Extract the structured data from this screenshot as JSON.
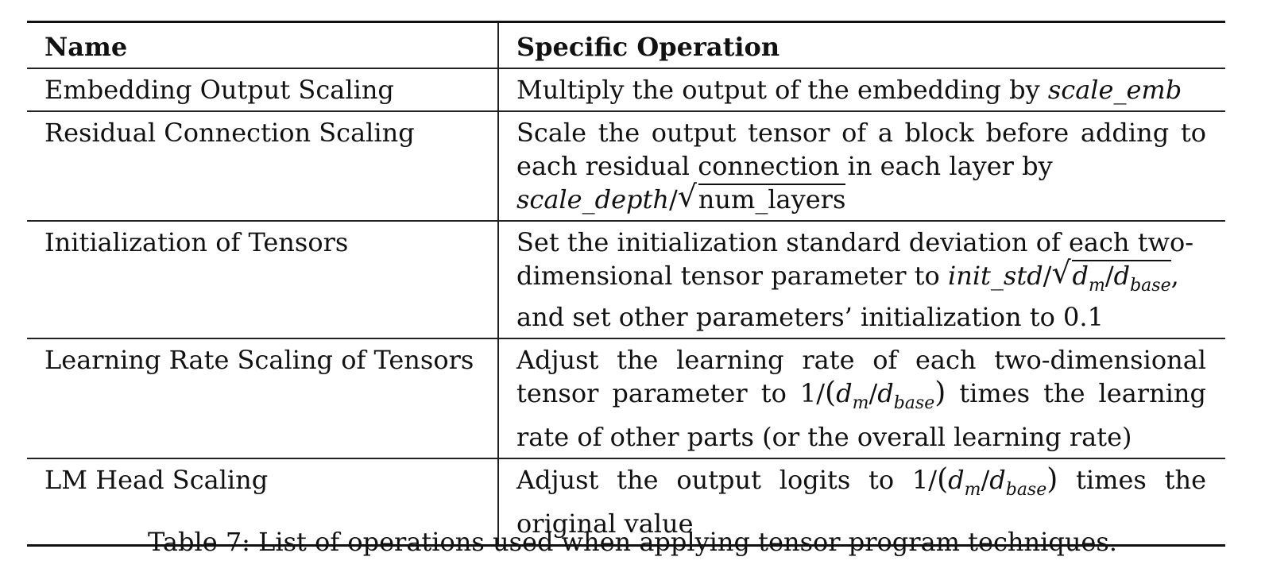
{
  "table": {
    "headers": {
      "name": "Name",
      "operation": "Specific Operation"
    },
    "rows": [
      {
        "name": "Embedding Output Scaling",
        "op_text": "Multiply the output of the embedding by ",
        "op_math": "scale_emb"
      },
      {
        "name": "Residual Connection Scaling",
        "op_text": "Scale the output tensor of a block before adding to each residual connection in each layer by",
        "op_math_var": "scale_depth",
        "op_math_slash": "/",
        "op_math_sqrt": "num_layers"
      },
      {
        "name": "Initialization of Tensors",
        "op_text": "Set the initialization standard deviation of each two-dimensional tensor parameter to ",
        "op_math_var": "init_std",
        "op_math_slash": "/",
        "op_math_d_m": "d",
        "op_math_m_sub": "m",
        "op_math_d_base": "d",
        "op_math_base_sub": "base",
        "op_text_after": ",",
        "op_text_2": "and set other parameters’ initialization to 0.1"
      },
      {
        "name": "Learning Rate Scaling of Tensors",
        "op_text": "Adjust the learning rate of each two-dimensional tensor parameter to ",
        "op_math_prefix": "1/",
        "op_text_after": " times the learning rate of other parts (or the overall learning rate)"
      },
      {
        "name": "LM Head Scaling",
        "op_text": "Adjust the output logits to ",
        "op_math_prefix": "1/",
        "op_text_after": " times the original value"
      }
    ]
  },
  "caption": "Table 7: List of operations used when applying tensor program techniques."
}
